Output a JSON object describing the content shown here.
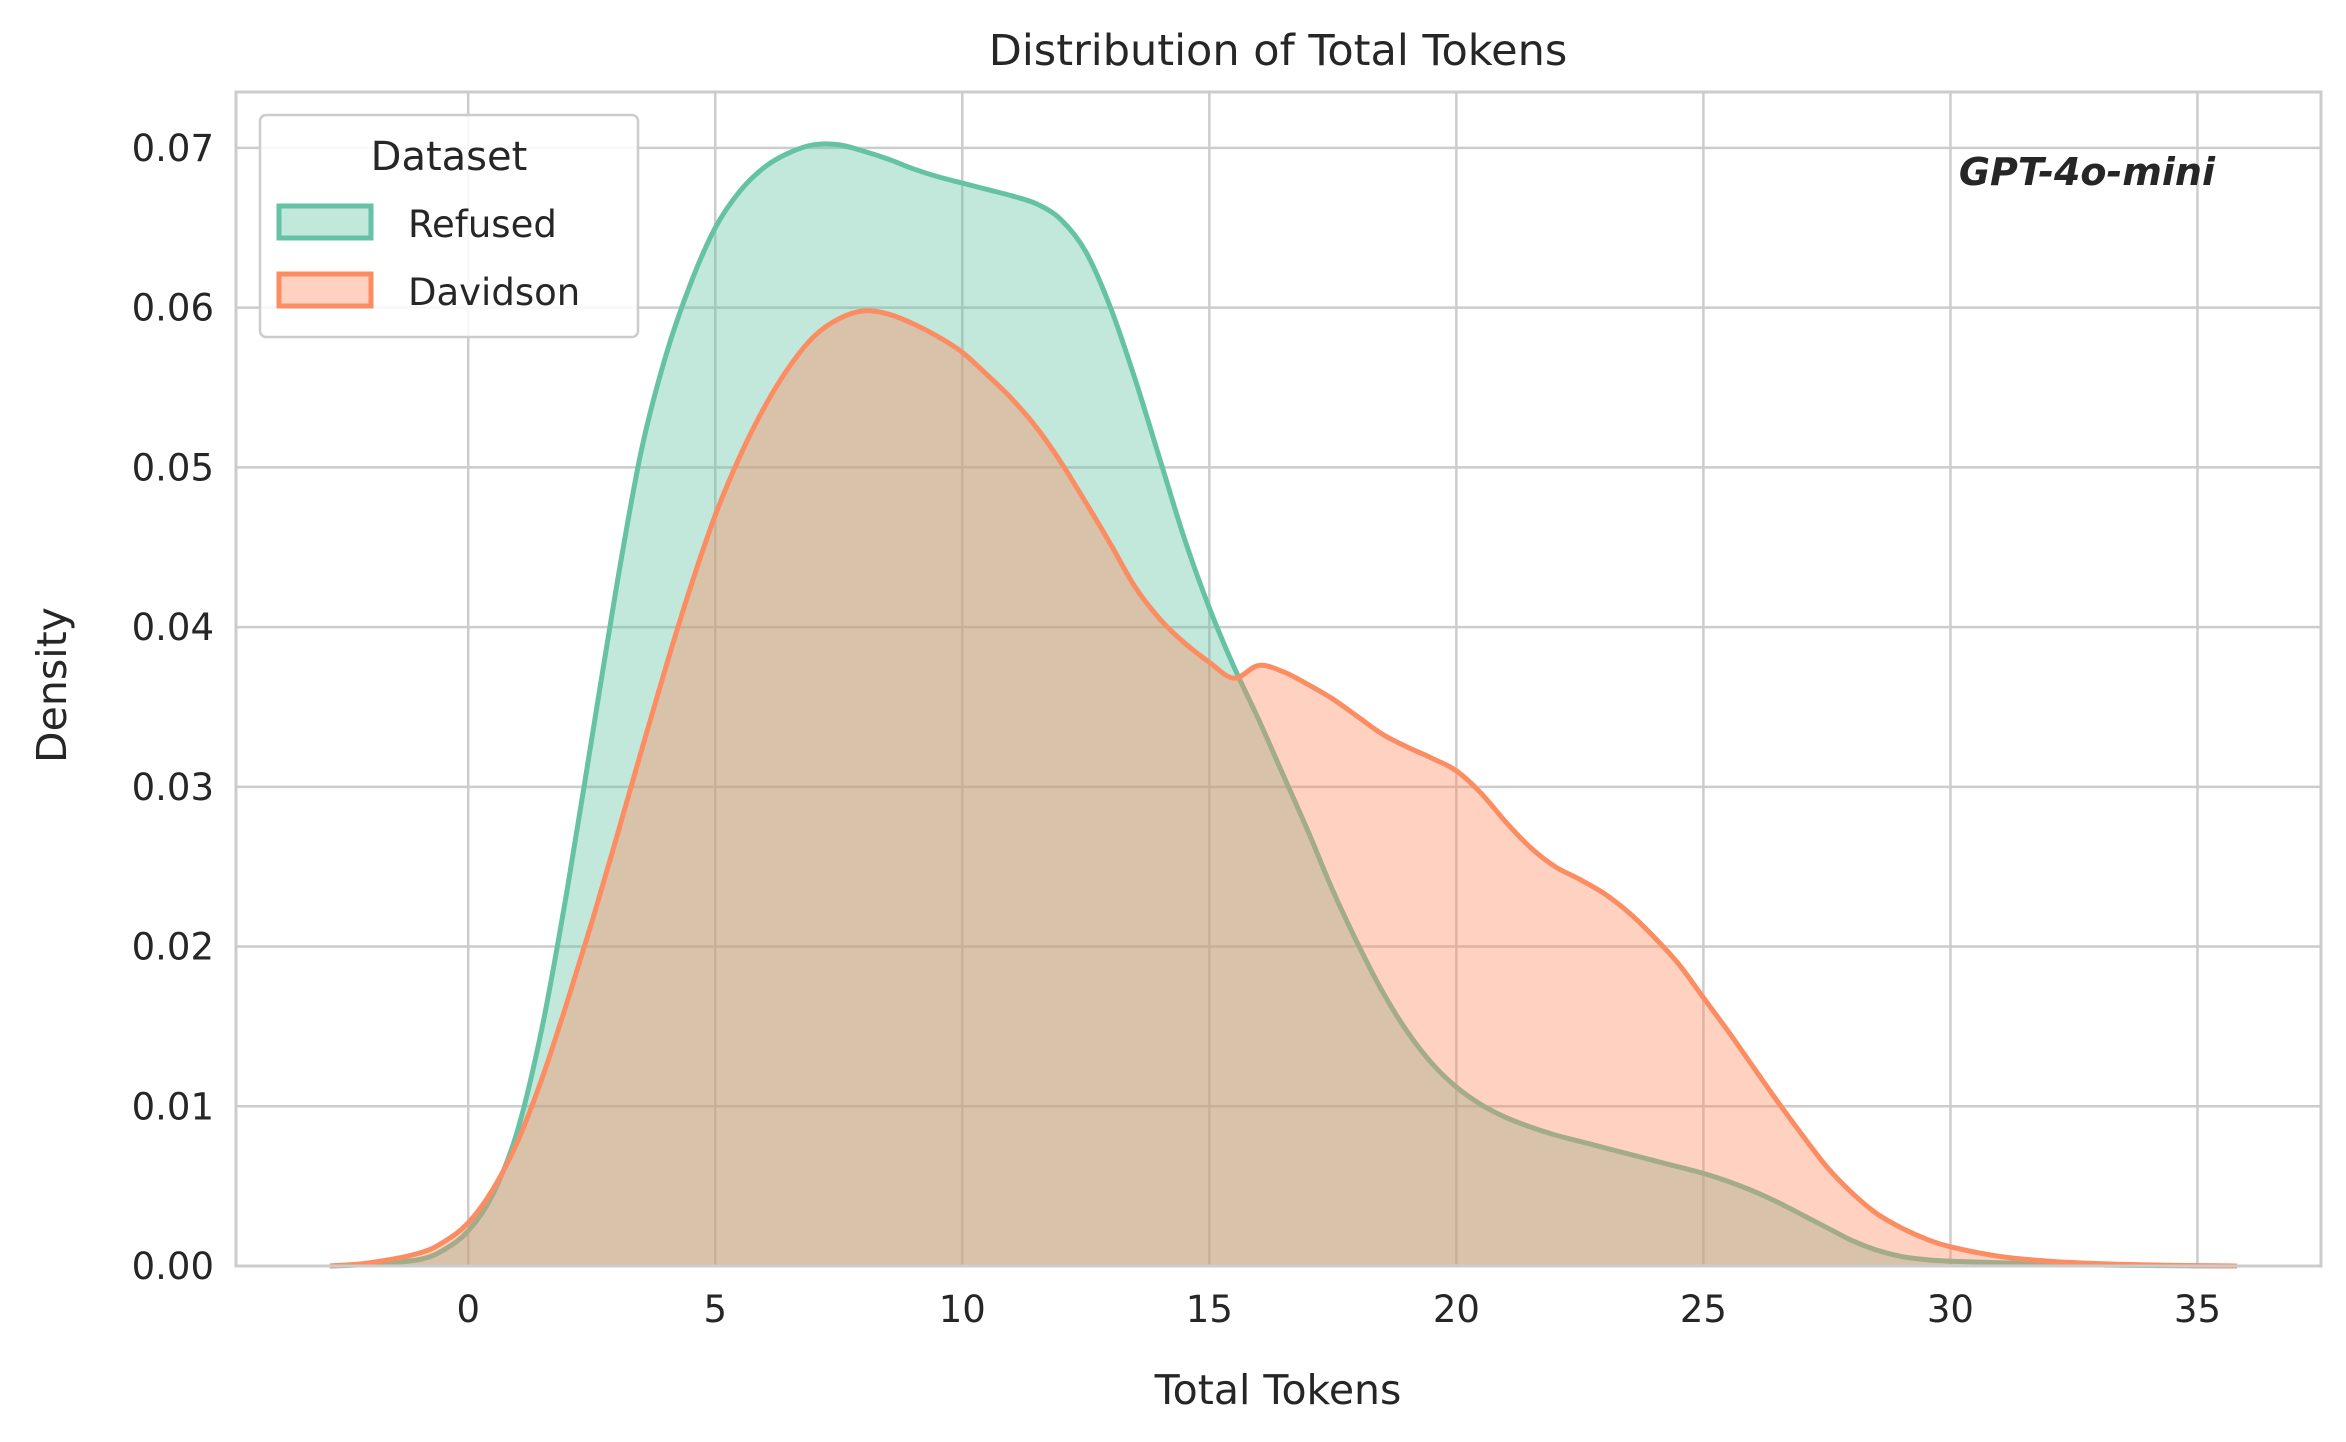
{
  "chart_data": {
    "type": "area",
    "title": "Distribution of Total Tokens",
    "xlabel": "Total Tokens",
    "ylabel": "Density",
    "xlim": [
      -4.7,
      37.5
    ],
    "ylim": [
      0,
      0.0735
    ],
    "x_ticks": [
      0,
      5,
      10,
      15,
      20,
      25,
      30,
      35
    ],
    "x_tick_labels": [
      "0",
      "5",
      "10",
      "15",
      "20",
      "25",
      "30",
      "35"
    ],
    "y_ticks": [
      0,
      0.01,
      0.02,
      0.03,
      0.04,
      0.05,
      0.06,
      0.07
    ],
    "y_tick_labels": [
      "0.00",
      "0.01",
      "0.02",
      "0.03",
      "0.04",
      "0.05",
      "0.06",
      "0.07"
    ],
    "grid": true,
    "legend": {
      "title": "Dataset",
      "placement": "top-left"
    },
    "annotation": "GPT-4o-mini",
    "series": [
      {
        "name": "Refused",
        "color": "#66c2a5",
        "x": [
          -2.8,
          -2,
          -1,
          -0.5,
          0,
          0.5,
          1,
          1.5,
          2,
          2.5,
          3,
          3.5,
          4,
          4.5,
          5,
          5.5,
          6,
          6.5,
          7,
          7.5,
          8,
          8.5,
          9,
          9.5,
          10,
          10.5,
          11,
          11.5,
          12,
          12.5,
          13,
          13.5,
          14,
          14.5,
          15,
          15.5,
          16,
          16.5,
          17,
          17.5,
          18,
          18.5,
          19,
          19.5,
          20,
          20.5,
          21,
          21.5,
          22,
          22.5,
          23,
          23.5,
          24,
          24.5,
          25,
          25.5,
          26,
          26.5,
          27,
          27.5,
          28,
          28.5,
          29,
          29.5,
          30,
          31,
          32,
          33,
          34,
          35,
          35.8
        ],
        "y": [
          0.0,
          0.0001,
          0.0004,
          0.001,
          0.0022,
          0.0045,
          0.0085,
          0.015,
          0.0235,
          0.033,
          0.0425,
          0.051,
          0.057,
          0.0615,
          0.065,
          0.0673,
          0.0688,
          0.0697,
          0.0702,
          0.0702,
          0.0698,
          0.0693,
          0.0687,
          0.0682,
          0.0678,
          0.0674,
          0.067,
          0.0665,
          0.0655,
          0.0635,
          0.06,
          0.0555,
          0.0505,
          0.0455,
          0.0412,
          0.0375,
          0.0342,
          0.0307,
          0.0272,
          0.0235,
          0.0202,
          0.0172,
          0.0147,
          0.0127,
          0.0112,
          0.0101,
          0.0093,
          0.0087,
          0.0082,
          0.0078,
          0.0074,
          0.007,
          0.0066,
          0.0062,
          0.0058,
          0.0053,
          0.0047,
          0.004,
          0.0032,
          0.0024,
          0.0016,
          0.001,
          0.0006,
          0.0004,
          0.0003,
          0.0002,
          0.00012,
          6e-05,
          3e-05,
          1e-05,
          0.0
        ]
      },
      {
        "name": "Davidson",
        "color": "#fc8d62",
        "x": [
          -2.8,
          -2,
          -1,
          -0.5,
          0,
          0.5,
          1,
          1.5,
          2,
          2.5,
          3,
          3.5,
          4,
          4.5,
          5,
          5.5,
          6,
          6.5,
          7,
          7.5,
          8,
          8.5,
          9,
          9.5,
          10,
          10.5,
          11,
          11.5,
          12,
          12.5,
          13,
          13.5,
          14,
          14.5,
          15,
          15.5,
          16,
          16.5,
          17,
          17.5,
          18,
          18.5,
          19,
          19.5,
          20,
          20.5,
          21,
          21.5,
          22,
          22.5,
          23,
          23.5,
          24,
          24.5,
          25,
          25.5,
          26,
          26.5,
          27,
          27.5,
          28,
          28.5,
          29,
          29.5,
          30,
          31,
          32,
          33,
          34,
          35,
          35.8
        ],
        "y": [
          0.0,
          0.0002,
          0.0008,
          0.0015,
          0.0027,
          0.0048,
          0.0078,
          0.0118,
          0.0165,
          0.0215,
          0.0268,
          0.0322,
          0.0375,
          0.0425,
          0.047,
          0.0507,
          0.0538,
          0.0563,
          0.0582,
          0.0593,
          0.0598,
          0.0596,
          0.059,
          0.0582,
          0.0572,
          0.0558,
          0.0543,
          0.0525,
          0.0503,
          0.0478,
          0.0452,
          0.0425,
          0.0405,
          0.039,
          0.0378,
          0.0368,
          0.0376,
          0.0372,
          0.0364,
          0.0355,
          0.0344,
          0.0333,
          0.0325,
          0.0318,
          0.031,
          0.0296,
          0.0278,
          0.0262,
          0.025,
          0.0242,
          0.0233,
          0.0221,
          0.0206,
          0.0189,
          0.0168,
          0.0147,
          0.0125,
          0.0103,
          0.0082,
          0.0062,
          0.0046,
          0.0033,
          0.0024,
          0.0017,
          0.0012,
          0.0006,
          0.0003,
          0.00015,
          7e-05,
          2e-05,
          0.0
        ]
      }
    ]
  }
}
